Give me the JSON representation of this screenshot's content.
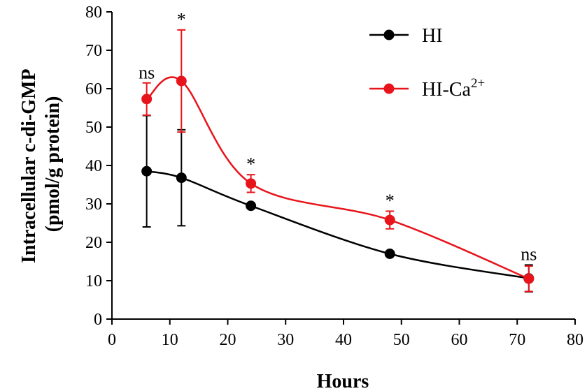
{
  "chart_data": {
    "type": "line",
    "xlabel": "Hours",
    "ylabel_lines": [
      "Intracellular c-di-GMP",
      "(pmol/g protein)"
    ],
    "xlim": [
      0,
      80
    ],
    "ylim": [
      0,
      80
    ],
    "xticks": [
      0,
      10,
      20,
      30,
      40,
      50,
      60,
      70,
      80
    ],
    "yticks": [
      0,
      10,
      20,
      30,
      40,
      50,
      60,
      70,
      80
    ],
    "grid": false,
    "legend_position": "top-right",
    "series": [
      {
        "name": "HI",
        "color": "#000000",
        "points": [
          {
            "x": 6,
            "y": 38.5,
            "err": 14.5
          },
          {
            "x": 12,
            "y": 36.8,
            "err": 12.5
          },
          {
            "x": 24,
            "y": 29.5,
            "err": 0.6
          },
          {
            "x": 48,
            "y": 17.0,
            "err": 0.5
          },
          {
            "x": 72,
            "y": 10.6,
            "err": 3.5
          }
        ]
      },
      {
        "name": "HI-Ca",
        "name_superscript": "2+",
        "color": "#e8141b",
        "points": [
          {
            "x": 6,
            "y": 57.3,
            "err": 4.2
          },
          {
            "x": 12,
            "y": 62.0,
            "err": 13.3
          },
          {
            "x": 24,
            "y": 35.3,
            "err": 2.3
          },
          {
            "x": 48,
            "y": 25.8,
            "err": 2.3
          },
          {
            "x": 72,
            "y": 10.5,
            "err": 3.3
          }
        ]
      }
    ],
    "annotations": [
      {
        "x": 6,
        "y": 62.6,
        "text": "ns"
      },
      {
        "x": 12,
        "y": 76.5,
        "text": "*"
      },
      {
        "x": 24,
        "y": 38.8,
        "text": "*"
      },
      {
        "x": 48,
        "y": 29.3,
        "text": "*"
      },
      {
        "x": 72,
        "y": 15.4,
        "text": "ns"
      }
    ]
  }
}
